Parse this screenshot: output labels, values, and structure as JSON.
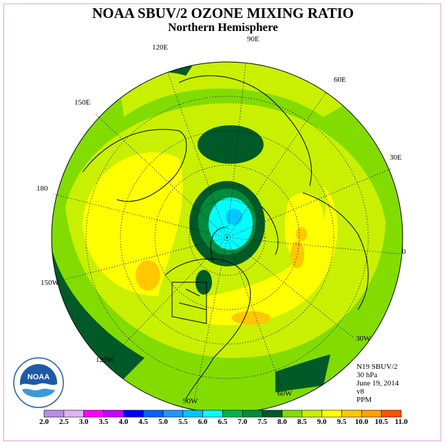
{
  "title": "NOAA SBUV/2 OZONE MIXING RATIO",
  "subtitle": "Northern Hemisphere",
  "longitude_labels": {
    "lon_90e": "90E",
    "lon_120e": "120E",
    "lon_60e": "60E",
    "lon_150e": "150E",
    "lon_30e": "30E",
    "lon_180": "180",
    "lon_0": "0",
    "lon_150w": "150W",
    "lon_30w": "30W",
    "lon_120w": "120W",
    "lon_60w": "60W",
    "lon_90w": "90W"
  },
  "info": {
    "instrument": "N19 SBUV/2",
    "level": "30 hPa",
    "date": "June 19, 2014",
    "version": "v8",
    "units": "PPM"
  },
  "logo_text": "NOAA",
  "colorbar": {
    "ticks": [
      "2.0",
      "2.5",
      "3.0",
      "3.5",
      "4.0",
      "4.5",
      "5.0",
      "5.5",
      "6.0",
      "6.5",
      "7.0",
      "7.5",
      "8.0",
      "8.5",
      "9.0",
      "9.5",
      "10.0",
      "10.5",
      "11.0"
    ],
    "colors": [
      "#b88ce8",
      "#dcb4f0",
      "#ff00ff",
      "#c800ff",
      "#0000ff",
      "#0064ff",
      "#1e96ff",
      "#00c8ff",
      "#00ffff",
      "#00b450",
      "#008c3c",
      "#005a28",
      "#82dc00",
      "#c8f000",
      "#ffff00",
      "#ffc800",
      "#ffa000",
      "#ff5000",
      "#ff0000",
      "#8c5028"
    ]
  },
  "colors": {
    "frame": "#d9a3d9",
    "ocean_base": "#c8f000",
    "land_outline": "#000000",
    "grid": "#000000"
  }
}
